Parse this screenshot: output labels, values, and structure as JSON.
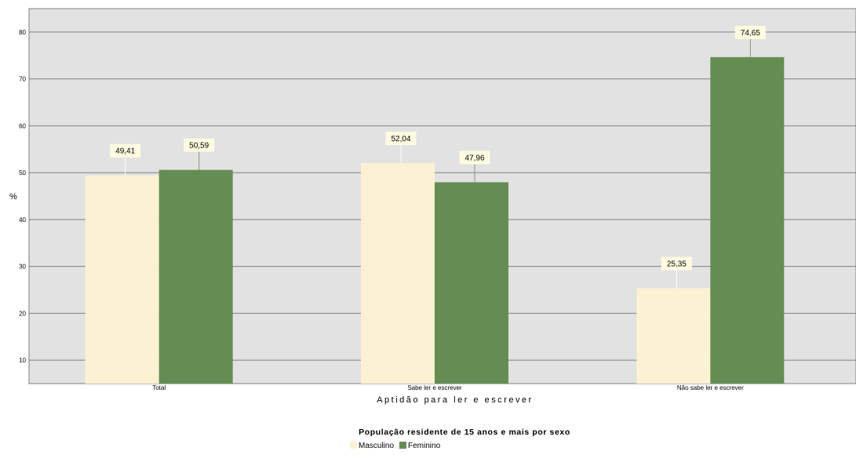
{
  "chart_data": {
    "type": "bar",
    "title": "",
    "ylabel": "%",
    "xlabel": "Aptidão para ler e escrever",
    "categories": [
      "Total",
      "Sabe ler e escrever",
      "Não sabe ler e escrever"
    ],
    "series": [
      {
        "name": "Masculino",
        "values": [
          49.41,
          52.04,
          25.35
        ],
        "labels": [
          "49,41",
          "52,04",
          "25,35"
        ],
        "color": "#fdf1d3"
      },
      {
        "name": "Feminino",
        "values": [
          50.59,
          47.96,
          74.65
        ],
        "labels": [
          "50,59",
          "47,96",
          "74,65"
        ],
        "color": "#658d53"
      }
    ],
    "ylim": [
      5,
      85
    ],
    "yticks": [
      10,
      20,
      30,
      40,
      50,
      60,
      70,
      80
    ],
    "grid": true,
    "legend": {
      "title": "População residente de 15 anos e mais por sexo",
      "position": "bottom-center"
    },
    "colors": {
      "plot_bg": "#e2e2e2",
      "gridline": "#7f7f7f",
      "label_bg": "#fdfce1"
    }
  }
}
